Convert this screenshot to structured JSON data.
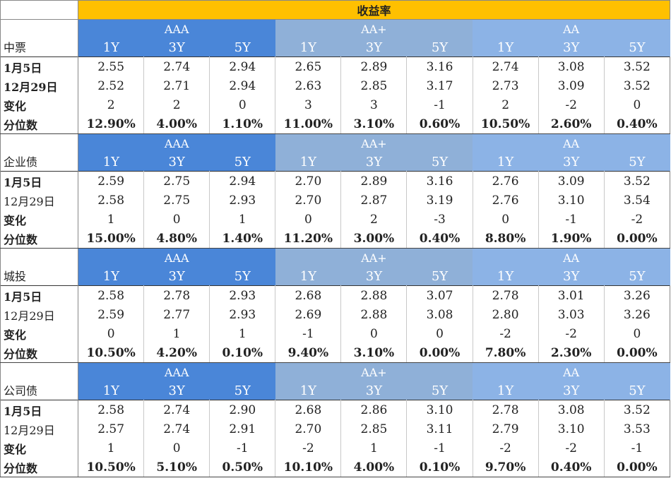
{
  "title": "收益率",
  "groups": [
    "AAA",
    "AA+",
    "AA"
  ],
  "tenors": [
    "1Y",
    "3Y",
    "5Y"
  ],
  "row_labels": [
    "1月5日",
    "12月29日",
    "变化",
    "分位数"
  ],
  "sections": [
    {
      "name": "中票",
      "rows": [
        [
          "2.55",
          "2.74",
          "2.94",
          "2.65",
          "2.89",
          "3.16",
          "2.74",
          "3.08",
          "3.52"
        ],
        [
          "2.52",
          "2.71",
          "2.94",
          "2.63",
          "2.85",
          "3.17",
          "2.73",
          "3.09",
          "3.52"
        ],
        [
          "2",
          "2",
          "0",
          "3",
          "3",
          "-1",
          "2",
          "-2",
          "0"
        ],
        [
          "12.90%",
          "4.00%",
          "1.10%",
          "11.00%",
          "3.10%",
          "0.60%",
          "10.50%",
          "2.60%",
          "0.40%"
        ]
      ]
    },
    {
      "name": "企业债",
      "rows": [
        [
          "2.59",
          "2.75",
          "2.94",
          "2.70",
          "2.89",
          "3.16",
          "2.76",
          "3.09",
          "3.52"
        ],
        [
          "2.58",
          "2.75",
          "2.93",
          "2.70",
          "2.87",
          "3.19",
          "2.76",
          "3.10",
          "3.54"
        ],
        [
          "1",
          "0",
          "1",
          "0",
          "2",
          "-3",
          "0",
          "-1",
          "-2"
        ],
        [
          "15.00%",
          "4.80%",
          "1.40%",
          "11.20%",
          "3.00%",
          "0.40%",
          "8.80%",
          "1.90%",
          "0.00%"
        ]
      ]
    },
    {
      "name": "城投",
      "rows": [
        [
          "2.58",
          "2.78",
          "2.93",
          "2.68",
          "2.88",
          "3.07",
          "2.78",
          "3.01",
          "3.26"
        ],
        [
          "2.59",
          "2.77",
          "2.93",
          "2.69",
          "2.88",
          "3.08",
          "2.80",
          "3.03",
          "3.26"
        ],
        [
          "0",
          "1",
          "1",
          "-1",
          "0",
          "0",
          "-2",
          "-2",
          "0"
        ],
        [
          "10.50%",
          "4.20%",
          "0.10%",
          "9.40%",
          "3.10%",
          "0.00%",
          "7.80%",
          "2.30%",
          "0.00%"
        ]
      ]
    },
    {
      "name": "公司债",
      "rows": [
        [
          "2.58",
          "2.74",
          "2.90",
          "2.68",
          "2.86",
          "3.10",
          "2.78",
          "3.08",
          "3.52"
        ],
        [
          "2.57",
          "2.74",
          "2.91",
          "2.70",
          "2.85",
          "3.11",
          "2.79",
          "3.10",
          "3.53"
        ],
        [
          "1",
          "0",
          "-1",
          "-2",
          "1",
          "-1",
          "-2",
          "-2",
          "-1"
        ],
        [
          "10.50%",
          "5.10%",
          "0.50%",
          "10.10%",
          "4.00%",
          "0.10%",
          "9.70%",
          "0.40%",
          "0.00%"
        ]
      ]
    }
  ]
}
